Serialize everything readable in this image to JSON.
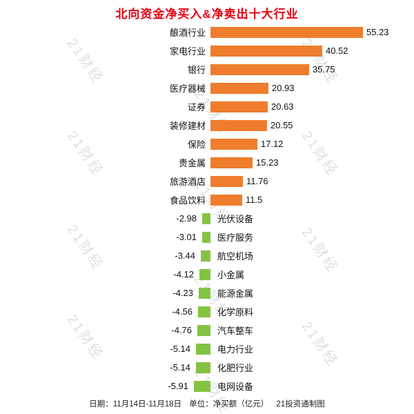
{
  "title": "北向资金净买入&净卖出十大行业",
  "watermark": "21财经",
  "footer": {
    "date": "日期：11月14日-11月18日",
    "unit": "单位：净买额（亿元）",
    "credit": "21投资通制图"
  },
  "colors": {
    "title": "#e60012",
    "positive_bar": "#ef7d2d",
    "negative_bar": "#84c341"
  },
  "chart_data": {
    "type": "bar",
    "orientation": "horizontal-diverging",
    "title": "北向资金净买入&净卖出十大行业",
    "unit": "净买额（亿元）",
    "xlim": [
      -10,
      60
    ],
    "positive": [
      {
        "label": "酿酒行业",
        "value": 55.23
      },
      {
        "label": "家电行业",
        "value": 40.52
      },
      {
        "label": "银行",
        "value": 35.75
      },
      {
        "label": "医疗器械",
        "value": 20.93
      },
      {
        "label": "证券",
        "value": 20.63
      },
      {
        "label": "装修建材",
        "value": 20.55
      },
      {
        "label": "保险",
        "value": 17.12
      },
      {
        "label": "贵金属",
        "value": 15.23
      },
      {
        "label": "旅游酒店",
        "value": 11.76
      },
      {
        "label": "食品饮料",
        "value": 11.5
      }
    ],
    "negative": [
      {
        "label": "光伏设备",
        "value": -2.98
      },
      {
        "label": "医疗服务",
        "value": -3.01
      },
      {
        "label": "航空机场",
        "value": -3.44
      },
      {
        "label": "小金属",
        "value": -4.12
      },
      {
        "label": "能源金属",
        "value": -4.23
      },
      {
        "label": "化学原料",
        "value": -4.56
      },
      {
        "label": "汽车整车",
        "value": -4.76
      },
      {
        "label": "电力行业",
        "value": -5.14
      },
      {
        "label": "化肥行业",
        "value": -5.14
      },
      {
        "label": "电网设备",
        "value": -5.91
      }
    ]
  }
}
